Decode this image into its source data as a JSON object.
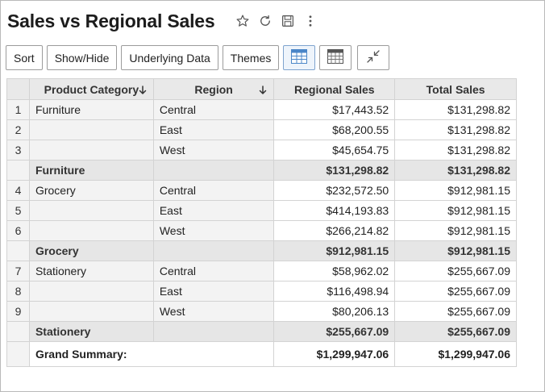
{
  "header": {
    "title": "Sales vs Regional Sales"
  },
  "toolbar": {
    "sort_label": "Sort",
    "showhide_label": "Show/Hide",
    "underlying_label": "Underlying Data",
    "themes_label": "Themes"
  },
  "icons": {
    "favorite": "star-icon",
    "refresh": "refresh-icon",
    "save": "save-icon",
    "more": "more-vertical-icon",
    "table_view": "table-view-icon",
    "compact_view": "compact-view-icon",
    "collapse": "collapse-icon",
    "sort_arrow": "arrow-down-icon"
  },
  "table": {
    "columns": {
      "category": "Product Category",
      "region": "Region",
      "regional_sales": "Regional Sales",
      "total_sales": "Total Sales"
    },
    "groups": [
      {
        "category": "Furniture",
        "rows": [
          {
            "num": "1",
            "region": "Central",
            "regional": "$17,443.52",
            "total": "$131,298.82"
          },
          {
            "num": "2",
            "region": "East",
            "regional": "$68,200.55",
            "total": "$131,298.82"
          },
          {
            "num": "3",
            "region": "West",
            "regional": "$45,654.75",
            "total": "$131,298.82"
          }
        ],
        "subtotal": {
          "label": "Furniture",
          "regional": "$131,298.82",
          "total": "$131,298.82"
        }
      },
      {
        "category": "Grocery",
        "rows": [
          {
            "num": "4",
            "region": "Central",
            "regional": "$232,572.50",
            "total": "$912,981.15"
          },
          {
            "num": "5",
            "region": "East",
            "regional": "$414,193.83",
            "total": "$912,981.15"
          },
          {
            "num": "6",
            "region": "West",
            "regional": "$266,214.82",
            "total": "$912,981.15"
          }
        ],
        "subtotal": {
          "label": "Grocery",
          "regional": "$912,981.15",
          "total": "$912,981.15"
        }
      },
      {
        "category": "Stationery",
        "rows": [
          {
            "num": "7",
            "region": "Central",
            "regional": "$58,962.02",
            "total": "$255,667.09"
          },
          {
            "num": "8",
            "region": "East",
            "regional": "$116,498.94",
            "total": "$255,667.09"
          },
          {
            "num": "9",
            "region": "West",
            "regional": "$80,206.13",
            "total": "$255,667.09"
          }
        ],
        "subtotal": {
          "label": "Stationery",
          "regional": "$255,667.09",
          "total": "$255,667.09"
        }
      }
    ],
    "grand": {
      "label": "Grand Summary:",
      "regional": "$1,299,947.06",
      "total": "$1,299,947.06"
    }
  }
}
